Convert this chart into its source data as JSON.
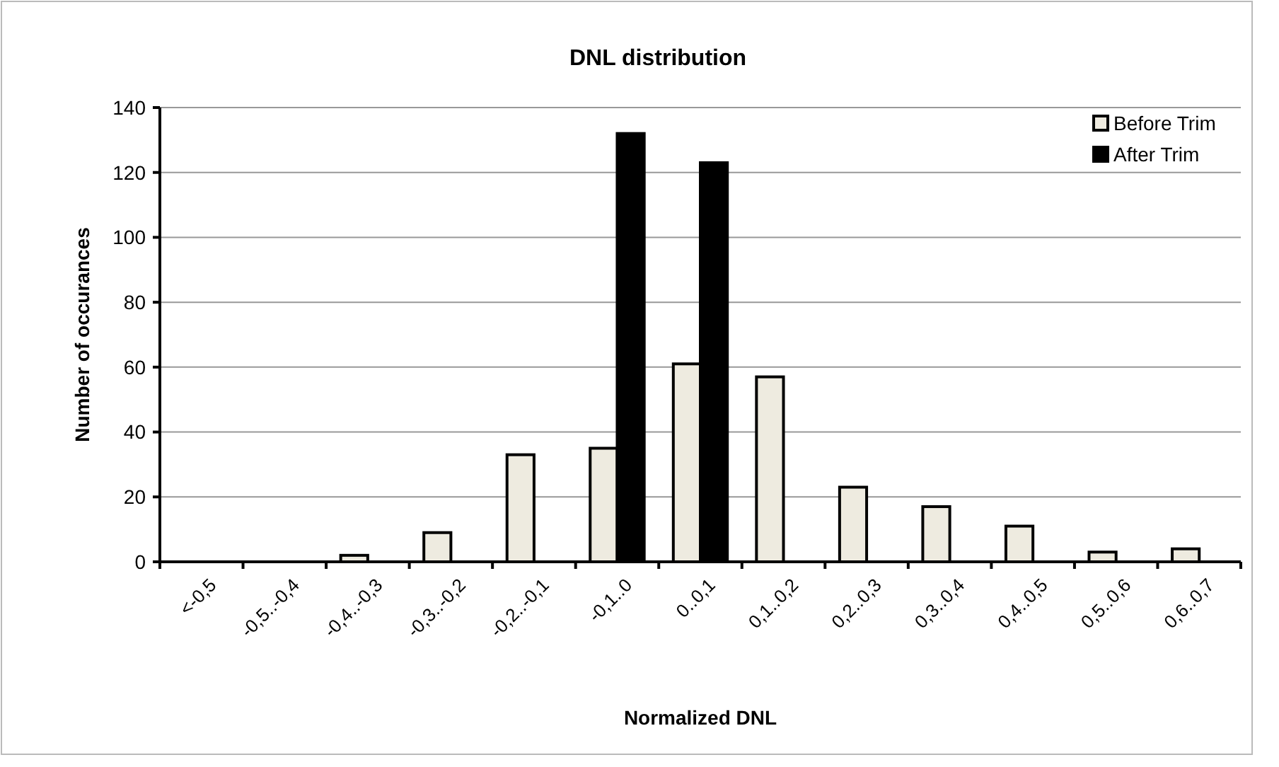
{
  "chart_data": {
    "type": "bar",
    "title": "DNL distribution",
    "xlabel": "Normalized DNL",
    "ylabel": "Number of occurances",
    "categories": [
      "<-0,5",
      "-0,5..-0,4",
      "-0,4..-0,3",
      "-0,3..-0,2",
      "-0,2..-0,1",
      "-0,1..0",
      "0..0,1",
      "0,1..0,2",
      "0,2..0,3",
      "0,3..0,4",
      "0,4..0,5",
      "0,5..0,6",
      "0,6..0,7"
    ],
    "series": [
      {
        "name": "Before Trim",
        "color": "#eeebe0",
        "values": [
          0,
          0,
          2,
          9,
          33,
          35,
          61,
          57,
          23,
          17,
          11,
          3,
          4
        ]
      },
      {
        "name": "After Trim",
        "color": "#000000",
        "values": [
          0,
          0,
          0,
          0,
          0,
          132,
          123,
          0,
          0,
          0,
          0,
          0,
          0
        ]
      }
    ],
    "ylim": [
      0,
      140
    ],
    "yticks": [
      0,
      20,
      40,
      60,
      80,
      100,
      120,
      140
    ],
    "grid": "y",
    "legend": "top right"
  }
}
